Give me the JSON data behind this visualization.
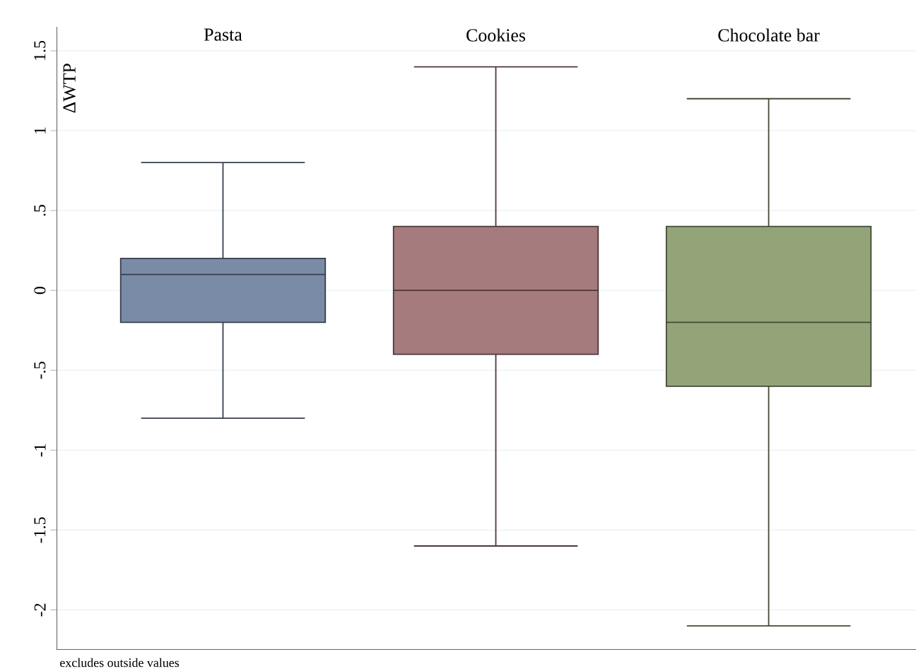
{
  "chart_data": {
    "type": "box",
    "categories": [
      "Pasta",
      "Cookies",
      "Chocolate bar"
    ],
    "boxes": [
      {
        "low": -0.8,
        "q1": -0.2,
        "median": 0.1,
        "q3": 0.2,
        "high": 0.8
      },
      {
        "low": -1.6,
        "q1": -0.4,
        "median": 0,
        "q3": 0.4,
        "high": 1.4
      },
      {
        "low": -2.1,
        "q1": -0.6,
        "median": -0.2,
        "q3": 0.4,
        "high": 1.2
      }
    ],
    "colors": [
      "#7a8ba8",
      "#a67b7e",
      "#93a578"
    ],
    "ylabel": "ΔWTP",
    "ylim": [
      -2.25,
      1.65
    ],
    "yticks": [
      {
        "value": -2,
        "label": "-2"
      },
      {
        "value": -1.5,
        "label": "-1.5"
      },
      {
        "value": -1,
        "label": "-1"
      },
      {
        "value": -0.5,
        "label": "-.5"
      },
      {
        "value": 0,
        "label": "0"
      },
      {
        "value": 0.5,
        "label": ".5"
      },
      {
        "value": 1,
        "label": "1"
      },
      {
        "value": 1.5,
        "label": "1.5"
      }
    ],
    "grid": "y",
    "annotations": [
      "excludes outside values"
    ]
  }
}
